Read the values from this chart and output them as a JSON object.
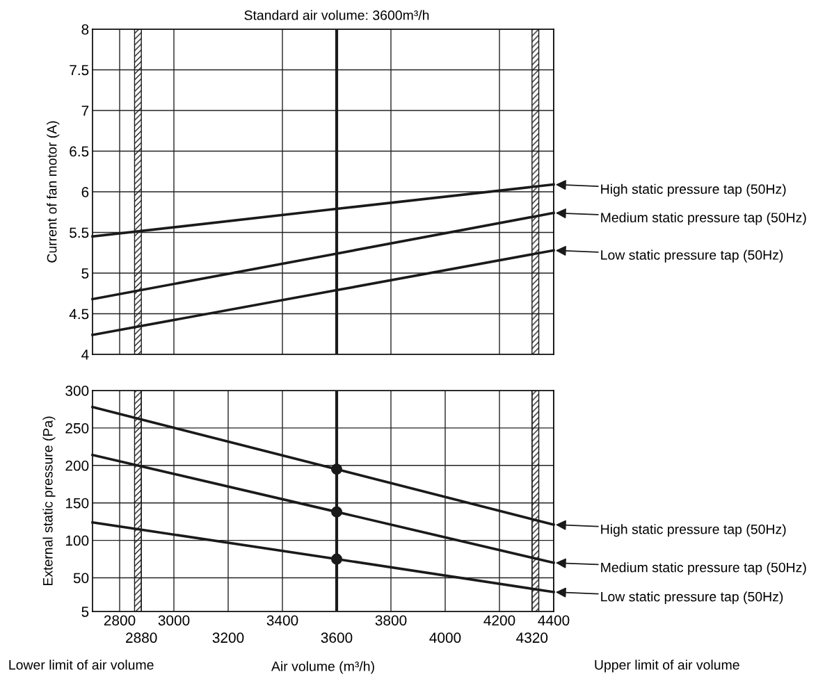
{
  "chart_data": [
    {
      "type": "line",
      "ylabel": "Current of fan motor (A)",
      "xlim": [
        2700,
        4400
      ],
      "ylim": [
        4,
        8
      ],
      "xticks": [
        2800,
        3000,
        3400,
        3800,
        4200,
        4400
      ],
      "yticks": [
        4,
        4.5,
        5,
        5.5,
        6,
        6.5,
        7,
        7.5,
        8
      ],
      "tick_labels": "y",
      "grid": true,
      "marker": "none",
      "line_style": "solid",
      "legend": "right",
      "series": [
        {
          "name": "High static pressure tap (50Hz)",
          "color": "#1a1a1a",
          "x": [
            2700,
            3600,
            4400
          ],
          "values": [
            5.45,
            5.79,
            6.09
          ]
        },
        {
          "name": "Medium static pressure tap (50Hz)",
          "color": "#1a1a1a",
          "x": [
            2700,
            3600,
            4400
          ],
          "values": [
            4.68,
            5.24,
            5.74
          ]
        },
        {
          "name": "Low static pressure tap (50Hz)",
          "color": "#1a1a1a",
          "x": [
            2700,
            3600,
            4400
          ],
          "values": [
            4.24,
            4.79,
            5.28
          ]
        }
      ],
      "ref_lines": [
        {
          "axis": "x",
          "value": 3600,
          "label": "Standard air volume: 3600m³/h",
          "color": "#1a1a1a"
        }
      ],
      "bands": [
        {
          "axis": "x",
          "from": 2855,
          "to": 2880,
          "color": "#1a1a1a"
        },
        {
          "axis": "x",
          "from": 4320,
          "to": 4345,
          "color": "#1a1a1a"
        }
      ]
    },
    {
      "type": "line",
      "xlabel": "Air volume (m³/h)",
      "ylabel": "External static pressure (Pa)",
      "xlim": [
        2700,
        4400
      ],
      "ylim": [
        5,
        300
      ],
      "xticks": [
        2800,
        3000,
        3400,
        3800,
        4200,
        4400
      ],
      "x2lim": [
        2700,
        4400
      ],
      "x2ticks": [
        2880,
        3200,
        3600,
        4000,
        4320
      ],
      "yticks": [
        5,
        50,
        100,
        150,
        200,
        250,
        300
      ],
      "grid": true,
      "marker": "none",
      "line_style": "solid",
      "legend": "right",
      "series": [
        {
          "name": "High static pressure tap (50Hz)",
          "color": "#1a1a1a",
          "x": [
            2700,
            3600,
            4400
          ],
          "values": [
            278,
            195,
            121
          ]
        },
        {
          "name": "Medium static pressure tap (50Hz)",
          "color": "#1a1a1a",
          "x": [
            2700,
            3600,
            4400
          ],
          "values": [
            214,
            138,
            70
          ]
        },
        {
          "name": "Low static pressure tap (50Hz)",
          "color": "#1a1a1a",
          "x": [
            2700,
            3600,
            4400
          ],
          "values": [
            124,
            75,
            31
          ]
        },
        {
          "type": "scatter",
          "color": "#1a1a1a",
          "marker": "circle",
          "x": [
            3600,
            3600,
            3600
          ],
          "values": [
            195,
            138,
            75
          ]
        }
      ],
      "ref_lines": [
        {
          "axis": "x",
          "value": 3600,
          "label": null,
          "color": "#1a1a1a"
        }
      ],
      "bands": [
        {
          "axis": "x",
          "from": 2855,
          "to": 2880,
          "color": "#1a1a1a"
        },
        {
          "axis": "x",
          "from": 4320,
          "to": 4345,
          "color": "#1a1a1a"
        }
      ],
      "annotations": [
        "Lower limit of air volume",
        "Upper limit of air volume"
      ]
    }
  ]
}
